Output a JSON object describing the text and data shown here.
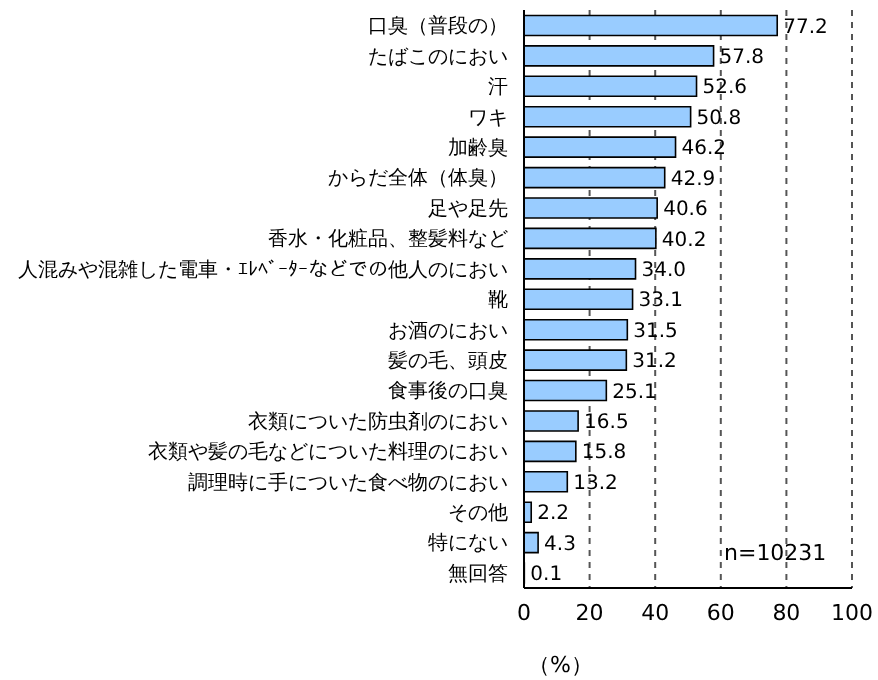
{
  "chart_data": {
    "type": "bar",
    "orientation": "horizontal",
    "categories": [
      "口臭（普段の）",
      "たばこのにおい",
      "汗",
      "ワキ",
      "加齢臭",
      "からだ全体（体臭）",
      "足や足先",
      "香水・化粧品、整髪料など",
      "人混みや混雑した電車・ｴﾚﾍﾞｰﾀｰなどでの他人のにおい",
      "靴",
      "お酒のにおい",
      "髪の毛、頭皮",
      "食事後の口臭",
      "衣類についた防虫剤のにおい",
      "衣類や髪の毛などについた料理のにおい",
      "調理時に手についた食べ物のにおい",
      "その他",
      "特にない",
      "無回答"
    ],
    "values": [
      77.2,
      57.8,
      52.6,
      50.8,
      46.2,
      42.9,
      40.6,
      40.2,
      34.0,
      33.1,
      31.5,
      31.2,
      25.1,
      16.5,
      15.8,
      13.2,
      2.2,
      4.3,
      0.1
    ],
    "value_labels": [
      "77.2",
      "57.8",
      "52.6",
      "50.8",
      "46.2",
      "42.9",
      "40.6",
      "40.2",
      "34.0",
      "33.1",
      "31.5",
      "31.2",
      "25.1",
      "16.5",
      "15.8",
      "13.2",
      "2.2",
      "4.3",
      "0.1"
    ],
    "color": "#99ccff",
    "xlim": [
      0,
      100
    ],
    "xticks": [
      0,
      20,
      40,
      60,
      80,
      100
    ],
    "xlabel": "（%）",
    "grid": "x",
    "annotations": [
      "n=10231"
    ]
  }
}
